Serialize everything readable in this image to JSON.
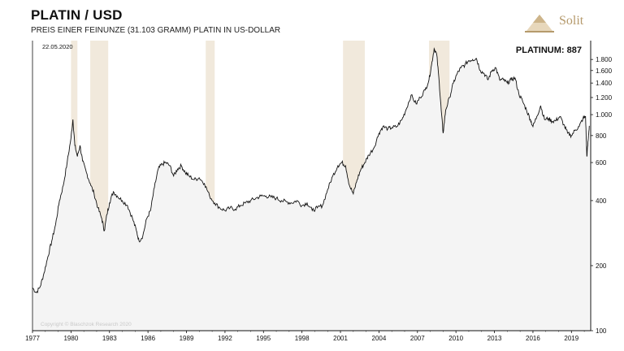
{
  "header": {
    "title": "PLATIN / USD",
    "subtitle": "PREIS EINER FEINUNZE (31.103 GRAMM) PLATIN IN US-DOLLAR"
  },
  "brand": {
    "name": "Solit",
    "color": "#b59a6c"
  },
  "date_label": "22.05.2020",
  "value_label": "PLATINUM: 887",
  "copyright": "Copyright © Blaschzok Research 2020",
  "colors": {
    "line": "#111111",
    "fill": "#f4f4f4",
    "shade": "#f1e9dc"
  },
  "chart_data": {
    "type": "line",
    "title": "PLATIN / USD",
    "subtitle": "PREIS EINER FEINUNZE (31.103 GRAMM) PLATIN IN US-DOLLAR",
    "y_scale": "log",
    "ylim": [
      100,
      2200
    ],
    "xlim": [
      1977,
      2020.5
    ],
    "x_ticks": [
      "1977",
      "1980",
      "1983",
      "1986",
      "1989",
      "1992",
      "1995",
      "1998",
      "2001",
      "2004",
      "2007",
      "2010",
      "2013",
      "2016",
      "2019"
    ],
    "y_ticks": [
      {
        "value": 100,
        "label": "100"
      },
      {
        "value": 200,
        "label": "200"
      },
      {
        "value": 400,
        "label": "400"
      },
      {
        "value": 600,
        "label": "600"
      },
      {
        "value": 800,
        "label": "800"
      },
      {
        "value": 1000,
        "label": "1.000"
      },
      {
        "value": 1200,
        "label": "1.200"
      },
      {
        "value": 1400,
        "label": "1.400"
      },
      {
        "value": 1600,
        "label": "1.600"
      },
      {
        "value": 1800,
        "label": "1.800"
      }
    ],
    "shaded_periods": [
      [
        1980.0,
        1980.5
      ],
      [
        1981.5,
        1982.9
      ],
      [
        1990.5,
        1991.2
      ],
      [
        2001.2,
        2002.9
      ],
      [
        2007.9,
        2009.5
      ]
    ],
    "series": [
      {
        "values": [
          [
            1977.0,
            158
          ],
          [
            1977.3,
            150
          ],
          [
            1977.6,
            160
          ],
          [
            1977.9,
            185
          ],
          [
            1978.2,
            220
          ],
          [
            1978.5,
            260
          ],
          [
            1978.8,
            310
          ],
          [
            1979.1,
            400
          ],
          [
            1979.4,
            470
          ],
          [
            1979.7,
            600
          ],
          [
            1980.0,
            780
          ],
          [
            1980.15,
            950
          ],
          [
            1980.3,
            720
          ],
          [
            1980.5,
            640
          ],
          [
            1980.7,
            720
          ],
          [
            1980.9,
            610
          ],
          [
            1981.2,
            540
          ],
          [
            1981.5,
            480
          ],
          [
            1981.8,
            430
          ],
          [
            1982.1,
            370
          ],
          [
            1982.4,
            330
          ],
          [
            1982.6,
            290
          ],
          [
            1982.8,
            345
          ],
          [
            1983.0,
            390
          ],
          [
            1983.3,
            440
          ],
          [
            1983.6,
            420
          ],
          [
            1984.0,
            400
          ],
          [
            1984.4,
            380
          ],
          [
            1984.8,
            330
          ],
          [
            1985.1,
            290
          ],
          [
            1985.3,
            260
          ],
          [
            1985.6,
            275
          ],
          [
            1985.9,
            330
          ],
          [
            1986.2,
            360
          ],
          [
            1986.5,
            460
          ],
          [
            1986.8,
            560
          ],
          [
            1987.1,
            590
          ],
          [
            1987.4,
            600
          ],
          [
            1987.7,
            580
          ],
          [
            1988.0,
            520
          ],
          [
            1988.3,
            560
          ],
          [
            1988.6,
            580
          ],
          [
            1988.9,
            540
          ],
          [
            1989.2,
            520
          ],
          [
            1989.6,
            500
          ],
          [
            1990.0,
            510
          ],
          [
            1990.4,
            480
          ],
          [
            1990.8,
            420
          ],
          [
            1991.2,
            390
          ],
          [
            1991.6,
            370
          ],
          [
            1992.0,
            360
          ],
          [
            1992.4,
            370
          ],
          [
            1992.8,
            365
          ],
          [
            1993.2,
            380
          ],
          [
            1993.6,
            390
          ],
          [
            1994.0,
            400
          ],
          [
            1994.4,
            410
          ],
          [
            1994.8,
            420
          ],
          [
            1995.2,
            420
          ],
          [
            1995.6,
            415
          ],
          [
            1996.0,
            410
          ],
          [
            1996.4,
            400
          ],
          [
            1996.8,
            395
          ],
          [
            1997.2,
            390
          ],
          [
            1997.6,
            400
          ],
          [
            1998.0,
            380
          ],
          [
            1998.4,
            390
          ],
          [
            1998.8,
            360
          ],
          [
            1999.2,
            370
          ],
          [
            1999.6,
            380
          ],
          [
            2000.0,
            450
          ],
          [
            2000.4,
            520
          ],
          [
            2000.8,
            580
          ],
          [
            2001.1,
            600
          ],
          [
            2001.4,
            580
          ],
          [
            2001.7,
            470
          ],
          [
            2002.0,
            430
          ],
          [
            2002.3,
            500
          ],
          [
            2002.6,
            560
          ],
          [
            2002.9,
            600
          ],
          [
            2003.2,
            650
          ],
          [
            2003.6,
            700
          ],
          [
            2004.0,
            820
          ],
          [
            2004.3,
            880
          ],
          [
            2004.7,
            860
          ],
          [
            2005.0,
            870
          ],
          [
            2005.4,
            880
          ],
          [
            2005.8,
            950
          ],
          [
            2006.1,
            1050
          ],
          [
            2006.5,
            1230
          ],
          [
            2006.9,
            1120
          ],
          [
            2007.2,
            1200
          ],
          [
            2007.6,
            1300
          ],
          [
            2007.9,
            1450
          ],
          [
            2008.1,
            1700
          ],
          [
            2008.3,
            2020
          ],
          [
            2008.5,
            1900
          ],
          [
            2008.7,
            1400
          ],
          [
            2008.85,
            1050
          ],
          [
            2009.0,
            820
          ],
          [
            2009.2,
            1050
          ],
          [
            2009.5,
            1200
          ],
          [
            2009.8,
            1400
          ],
          [
            2010.1,
            1550
          ],
          [
            2010.4,
            1650
          ],
          [
            2010.7,
            1700
          ],
          [
            2011.0,
            1780
          ],
          [
            2011.3,
            1800
          ],
          [
            2011.6,
            1820
          ],
          [
            2011.9,
            1600
          ],
          [
            2012.2,
            1550
          ],
          [
            2012.5,
            1450
          ],
          [
            2012.8,
            1600
          ],
          [
            2013.1,
            1650
          ],
          [
            2013.4,
            1450
          ],
          [
            2013.7,
            1450
          ],
          [
            2014.0,
            1400
          ],
          [
            2014.3,
            1450
          ],
          [
            2014.6,
            1480
          ],
          [
            2014.9,
            1250
          ],
          [
            2015.2,
            1150
          ],
          [
            2015.5,
            1050
          ],
          [
            2015.8,
            950
          ],
          [
            2016.0,
            880
          ],
          [
            2016.3,
            980
          ],
          [
            2016.6,
            1100
          ],
          [
            2016.9,
            950
          ],
          [
            2017.2,
            960
          ],
          [
            2017.5,
            930
          ],
          [
            2017.8,
            940
          ],
          [
            2018.1,
            980
          ],
          [
            2018.4,
            900
          ],
          [
            2018.7,
            820
          ],
          [
            2019.0,
            800
          ],
          [
            2019.3,
            850
          ],
          [
            2019.6,
            880
          ],
          [
            2019.9,
            960
          ],
          [
            2020.1,
            980
          ],
          [
            2020.2,
            640
          ],
          [
            2020.3,
            760
          ],
          [
            2020.39,
            887
          ]
        ]
      }
    ],
    "xlabel": "",
    "ylabel": "",
    "grid": false
  }
}
